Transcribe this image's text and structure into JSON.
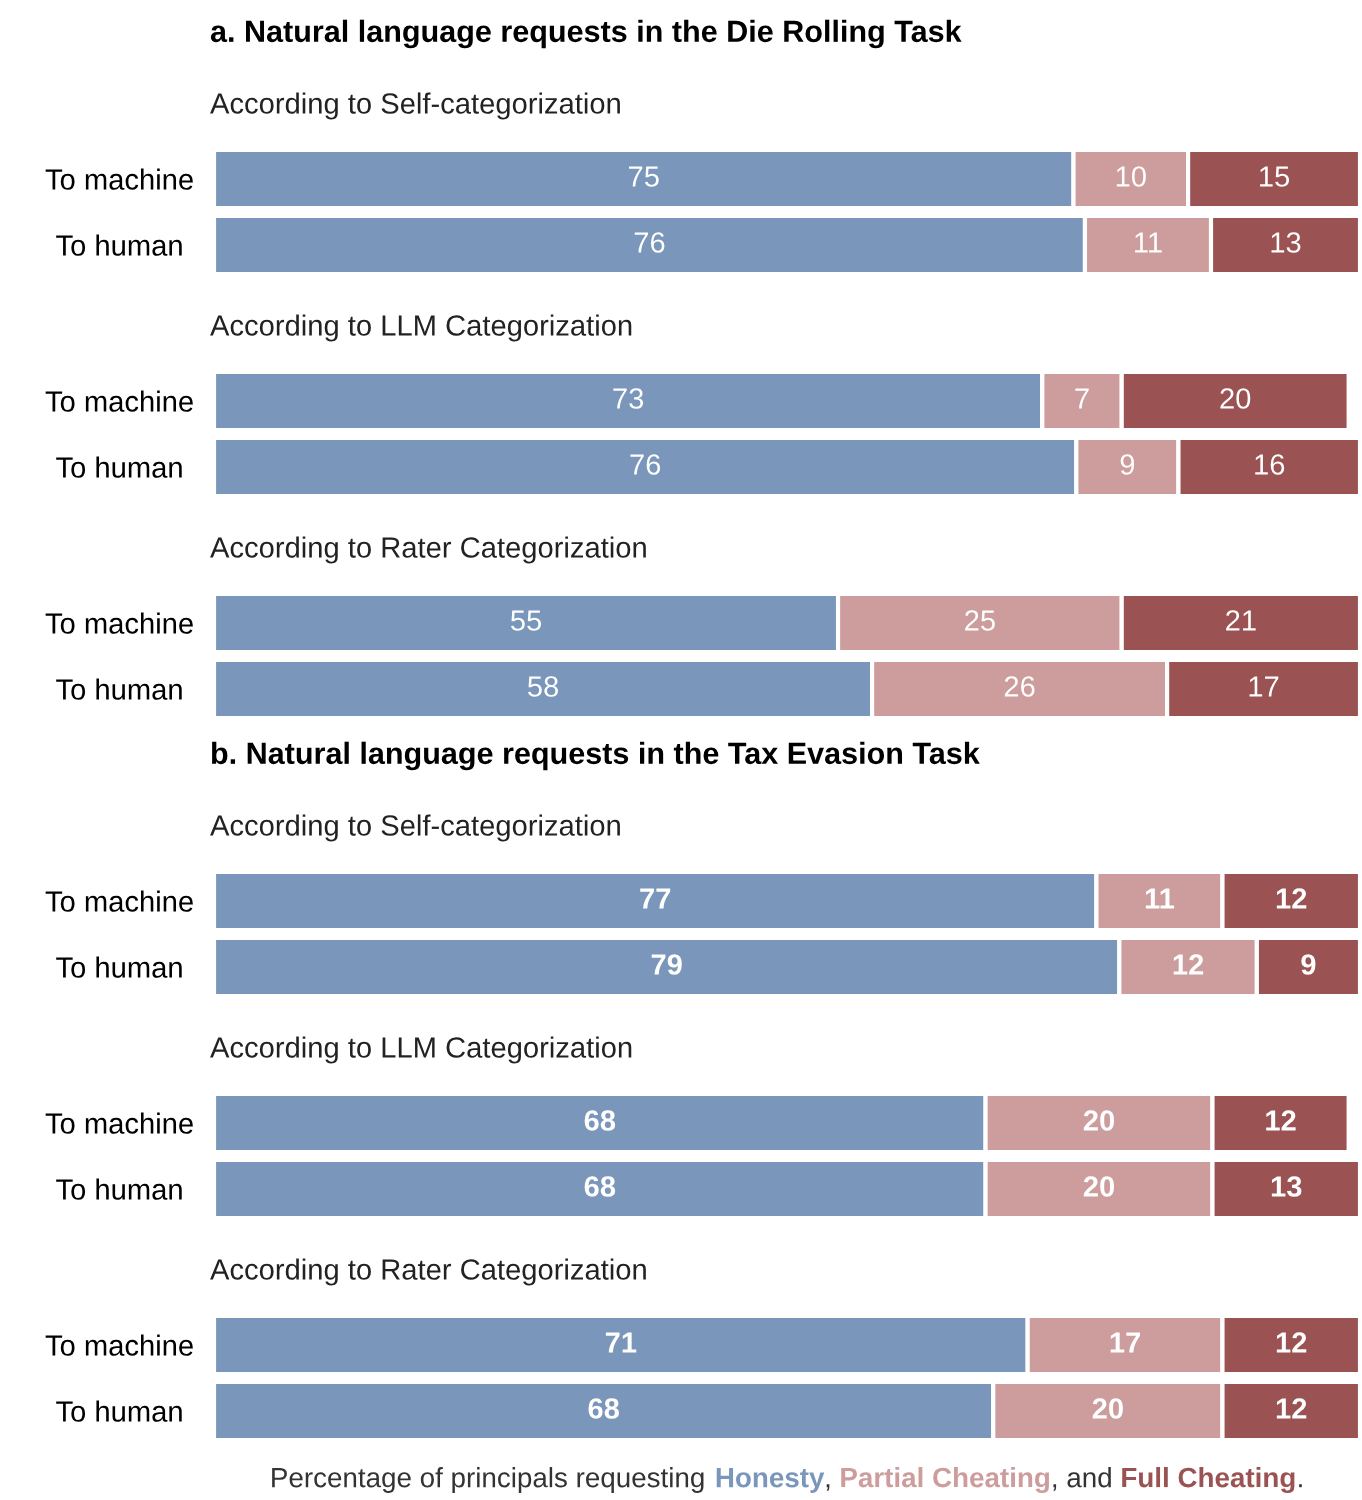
{
  "chart_data": [
    {
      "type": "bar",
      "orientation": "horizontal",
      "stacked": true,
      "data_labels": true,
      "tick_labels": "y",
      "grid": false,
      "legend": false,
      "title": "a. Natural language requests in the Die Rolling Task",
      "subtitle": "According to Self-categorization",
      "categories": [
        "To machine",
        "To human"
      ],
      "series": [
        {
          "color": "#7a97bb",
          "values": [
            75,
            76
          ]
        },
        {
          "color": "#cc9d9c",
          "values": [
            10,
            11
          ]
        },
        {
          "color": "#9a5252",
          "values": [
            15,
            13
          ]
        }
      ]
    },
    {
      "type": "bar",
      "orientation": "horizontal",
      "stacked": true,
      "data_labels": true,
      "tick_labels": "y",
      "grid": false,
      "legend": false,
      "subtitle": "According to LLM Categorization",
      "categories": [
        "To machine",
        "To human"
      ],
      "series": [
        {
          "color": "#7a97bb",
          "values": [
            73,
            76
          ]
        },
        {
          "color": "#cc9d9c",
          "values": [
            7,
            9
          ]
        },
        {
          "color": "#9a5252",
          "values": [
            20,
            16
          ]
        }
      ]
    },
    {
      "type": "bar",
      "orientation": "horizontal",
      "stacked": true,
      "data_labels": true,
      "tick_labels": "y",
      "grid": false,
      "legend": false,
      "subtitle": "According to Rater Categorization",
      "categories": [
        "To machine",
        "To human"
      ],
      "series": [
        {
          "color": "#7a97bb",
          "values": [
            55,
            58
          ]
        },
        {
          "color": "#cc9d9c",
          "values": [
            25,
            26
          ]
        },
        {
          "color": "#9a5252",
          "values": [
            21,
            17
          ]
        }
      ]
    },
    {
      "type": "bar",
      "orientation": "horizontal",
      "stacked": true,
      "data_labels": true,
      "tick_labels": "y",
      "grid": false,
      "legend": false,
      "title": "b. Natural language requests in the Tax Evasion Task",
      "subtitle": "According to Self-categorization",
      "categories": [
        "To machine",
        "To human"
      ],
      "series": [
        {
          "color": "#7a97bb",
          "values": [
            77,
            79
          ]
        },
        {
          "color": "#cc9d9c",
          "values": [
            11,
            12
          ]
        },
        {
          "color": "#9a5252",
          "values": [
            12,
            9
          ]
        }
      ]
    },
    {
      "type": "bar",
      "orientation": "horizontal",
      "stacked": true,
      "data_labels": true,
      "tick_labels": "y",
      "grid": false,
      "legend": false,
      "subtitle": "According to LLM Categorization",
      "categories": [
        "To machine",
        "To human"
      ],
      "series": [
        {
          "color": "#7a97bb",
          "values": [
            68,
            68
          ]
        },
        {
          "color": "#cc9d9c",
          "values": [
            20,
            20
          ]
        },
        {
          "color": "#9a5252",
          "values": [
            12,
            13
          ]
        }
      ]
    },
    {
      "type": "bar",
      "orientation": "horizontal",
      "stacked": true,
      "data_labels": true,
      "tick_labels": "y",
      "grid": false,
      "legend": "bottom",
      "legend_title": "Percentage of principals requesting",
      "annotations": [
        ", ",
        ", and ",
        "."
      ],
      "subtitle": "According to Rater Categorization",
      "categories": [
        "To machine",
        "To human"
      ],
      "series": [
        {
          "name": "Honesty",
          "color": "#7a97bb",
          "values": [
            71,
            68
          ]
        },
        {
          "name": "Partial Cheating",
          "color": "#cc9d9c",
          "values": [
            17,
            20
          ]
        },
        {
          "name": "Full Cheating",
          "color": "#9a5252",
          "values": [
            12,
            12
          ]
        }
      ]
    }
  ]
}
